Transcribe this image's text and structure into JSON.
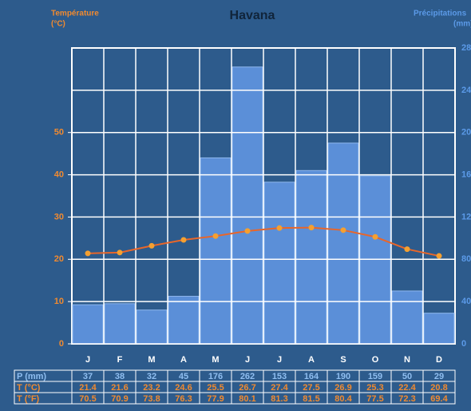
{
  "chart_data": {
    "type": "combo",
    "title": "Havana",
    "y_label_lines": [
      "Température",
      "(°C)"
    ],
    "y2_label_lines": [
      "Précipitations",
      "(mm)"
    ],
    "categories": [
      "J",
      "F",
      "M",
      "A",
      "M",
      "J",
      "J",
      "A",
      "S",
      "O",
      "N",
      "D"
    ],
    "series": [
      {
        "name": "P (mm)",
        "color": "#5b8fd8",
        "axis": "y2",
        "kind": "bar",
        "values": [
          37,
          38,
          32,
          45,
          176,
          262,
          153,
          164,
          190,
          159,
          50,
          29
        ]
      },
      {
        "name": "T (°C)",
        "color": "#e8662a",
        "marker_color": "#f5a030",
        "axis": "y",
        "kind": "line",
        "values": [
          21.4,
          21.6,
          23.2,
          24.6,
          25.5,
          26.7,
          27.4,
          27.5,
          26.9,
          25.3,
          22.4,
          20.8
        ]
      },
      {
        "name": "T (°F)",
        "kind": "table",
        "values": [
          70.5,
          70.9,
          73.8,
          76.3,
          77.9,
          80.1,
          81.3,
          81.5,
          80.4,
          77.5,
          72.3,
          69.4
        ]
      }
    ],
    "ylim": [
      0,
      70
    ],
    "yticks": [
      0,
      10,
      20,
      30,
      40,
      50
    ],
    "y2lim": [
      0,
      280
    ],
    "y2ticks": [
      0,
      40,
      80,
      120,
      160,
      200,
      240,
      280
    ],
    "grid": true
  }
}
